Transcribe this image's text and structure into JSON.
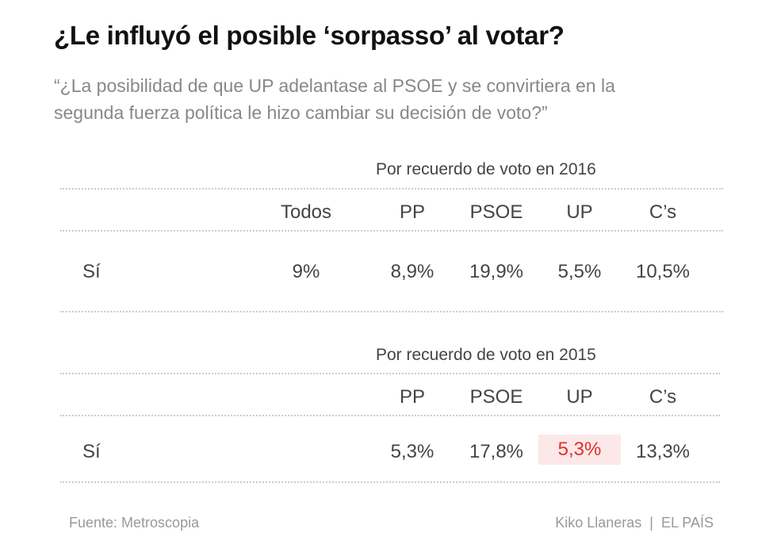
{
  "header": {
    "title": "¿Le influyó el posible ‘sorpasso’ al votar?",
    "subtitle_line1": "“¿La posibilidad de que UP adelantase al PSOE y se convirtiera en la",
    "subtitle_line2": "segunda fuerza política le hizo cambiar su decisión de voto?”"
  },
  "chart_data": [
    {
      "type": "table",
      "section_label": "Por recuerdo de voto en 2016",
      "columns": [
        "Todos",
        "PP",
        "PSOE",
        "UP",
        "C’s"
      ],
      "rows": [
        {
          "label": "Sí",
          "values": [
            "9%",
            "8,9%",
            "19,9%",
            "5,5%",
            "10,5%"
          ]
        }
      ]
    },
    {
      "type": "table",
      "section_label": "Por recuerdo de voto en 2015",
      "columns": [
        "PP",
        "PSOE",
        "UP",
        "C’s"
      ],
      "rows": [
        {
          "label": "Sí",
          "values": [
            "5,3%",
            "17,8%",
            "5,3%",
            "13,3%"
          ]
        }
      ],
      "highlight": {
        "column": "UP",
        "color": "#e0302b",
        "background": "#fce8e8"
      }
    }
  ],
  "footer": {
    "source": "Fuente: Metroscopia",
    "credit": "Kiko Llaneras  |  EL PAÍS"
  }
}
